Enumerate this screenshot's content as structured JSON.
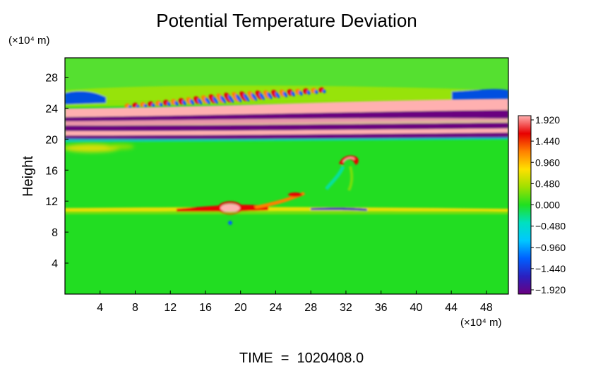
{
  "chart_data": {
    "type": "heatmap",
    "title": "Potential Temperature Deviation",
    "ylabel": "Height",
    "y_unit_label": "(×10⁴ m)",
    "x_unit_label": "(×10⁴ m)",
    "footer": "TIME  =  1020408.0",
    "x_ticks": [
      "4",
      "8",
      "12",
      "16",
      "20",
      "24",
      "28",
      "32",
      "36",
      "40",
      "44",
      "48"
    ],
    "y_ticks": [
      "4",
      "8",
      "12",
      "16",
      "20",
      "24",
      "28"
    ],
    "xlim": [
      0,
      50.5
    ],
    "ylim": [
      0,
      30.5
    ],
    "colorbar_ticks": [
      "1.920",
      "1.440",
      "0.960",
      "0.480",
      "0.000",
      "−0.480",
      "−0.960",
      "−1.440",
      "−1.920"
    ],
    "colorbar_range": [
      -1.92,
      1.92
    ],
    "colormap": [
      "#6a0080",
      "#2a20c0",
      "#0060ff",
      "#00c8ff",
      "#00e0c0",
      "#20e020",
      "#a0e000",
      "#ffe000",
      "#ff8000",
      "#e80000",
      "#ffb0b0"
    ]
  }
}
